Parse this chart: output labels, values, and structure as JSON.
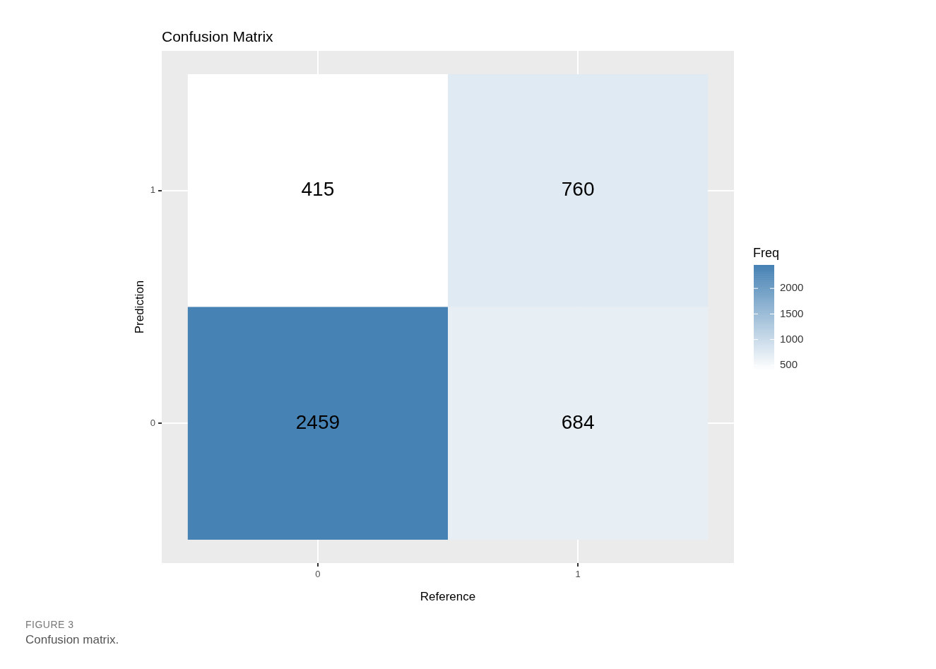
{
  "chart_data": {
    "type": "heatmap",
    "title": "Confusion Matrix",
    "xlabel": "Reference",
    "ylabel": "Prediction",
    "clabel": "Freq",
    "categories": [
      "0",
      "1"
    ],
    "y_categories": [
      "1",
      "0"
    ],
    "cells": [
      [
        415,
        760
      ],
      [
        2459,
        684
      ]
    ],
    "data_labels": true,
    "color": "#4682b4",
    "clim": [
      415,
      2459
    ],
    "cticks": [
      500,
      1000,
      1500,
      2000
    ],
    "grid": true,
    "annotations": [
      "FIGURE 3",
      "Confusion matrix."
    ]
  }
}
